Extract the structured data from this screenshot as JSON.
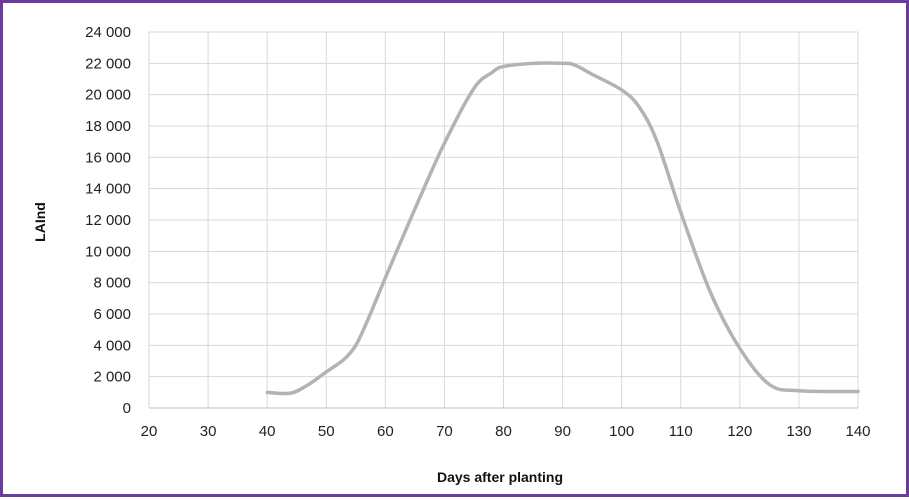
{
  "chart_data": {
    "type": "line",
    "title": "",
    "xlabel": "Days after planting",
    "ylabel": "LAInd",
    "xlim": [
      20,
      140
    ],
    "ylim": [
      0,
      24000
    ],
    "x_ticks": [
      20,
      30,
      40,
      50,
      60,
      70,
      80,
      90,
      100,
      110,
      120,
      130,
      140
    ],
    "y_ticks": [
      0,
      2000,
      4000,
      6000,
      8000,
      10000,
      12000,
      14000,
      16000,
      18000,
      20000,
      22000,
      24000
    ],
    "x_tick_labels": [
      "20",
      "30",
      "40",
      "50",
      "60",
      "70",
      "80",
      "90",
      "100",
      "110",
      "120",
      "130",
      "140"
    ],
    "y_tick_labels": [
      "0",
      "2 000",
      "4 000",
      "6 000",
      "8 000",
      "10 000",
      "12 000",
      "14 000",
      "16 000",
      "18 000",
      "20 000",
      "22 000",
      "24 000"
    ],
    "grid": true,
    "series": [
      {
        "color": "#b3b3b3",
        "x": [
          40,
          44,
          47,
          50,
          53,
          55,
          57,
          60,
          65,
          70,
          75,
          78,
          80,
          85,
          90,
          92,
          95,
          100,
          103,
          106,
          110,
          115,
          120,
          125,
          130,
          140
        ],
        "y": [
          1000,
          950,
          1500,
          2300,
          3100,
          4000,
          5600,
          8300,
          12700,
          16900,
          20400,
          21400,
          21800,
          22000,
          22000,
          21900,
          21300,
          20300,
          19200,
          17000,
          12500,
          7400,
          3800,
          1500,
          1100,
          1050
        ]
      }
    ]
  }
}
